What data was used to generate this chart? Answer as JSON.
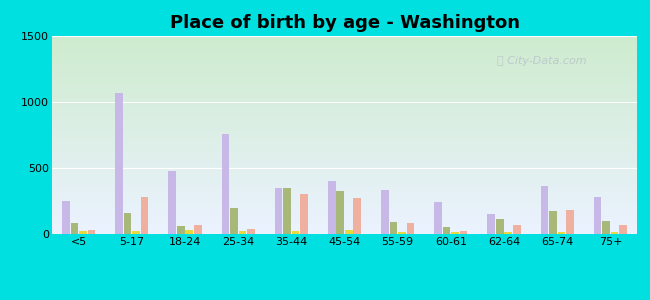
{
  "title": "Place of birth by age - Washington",
  "categories": [
    "<5",
    "5-17",
    "18-24",
    "25-34",
    "35-44",
    "45-54",
    "55-59",
    "60-61",
    "62-64",
    "65-74",
    "75+"
  ],
  "series": {
    "Born in state of residence": [
      250,
      1070,
      480,
      760,
      350,
      400,
      330,
      240,
      155,
      360,
      280
    ],
    "Born in other state": [
      80,
      160,
      60,
      195,
      345,
      325,
      90,
      50,
      115,
      175,
      100
    ],
    "Native, outside of US": [
      20,
      20,
      30,
      20,
      20,
      30,
      15,
      15,
      15,
      15,
      15
    ],
    "Foreign-born": [
      30,
      280,
      70,
      35,
      300,
      270,
      80,
      25,
      70,
      185,
      65
    ]
  },
  "colors": {
    "Born in state of residence": "#c8b8e8",
    "Born in other state": "#a8b878",
    "Native, outside of US": "#e8d840",
    "Foreign-born": "#f0b0a0"
  },
  "ylim": [
    0,
    1500
  ],
  "yticks": [
    0,
    500,
    1000,
    1500
  ],
  "background_color": "#00e0e0",
  "grid_color": "#ffffff",
  "title_fontsize": 13,
  "legend_fontsize": 8,
  "bar_width": 0.16,
  "figsize": [
    6.5,
    3.0
  ],
  "dpi": 100
}
